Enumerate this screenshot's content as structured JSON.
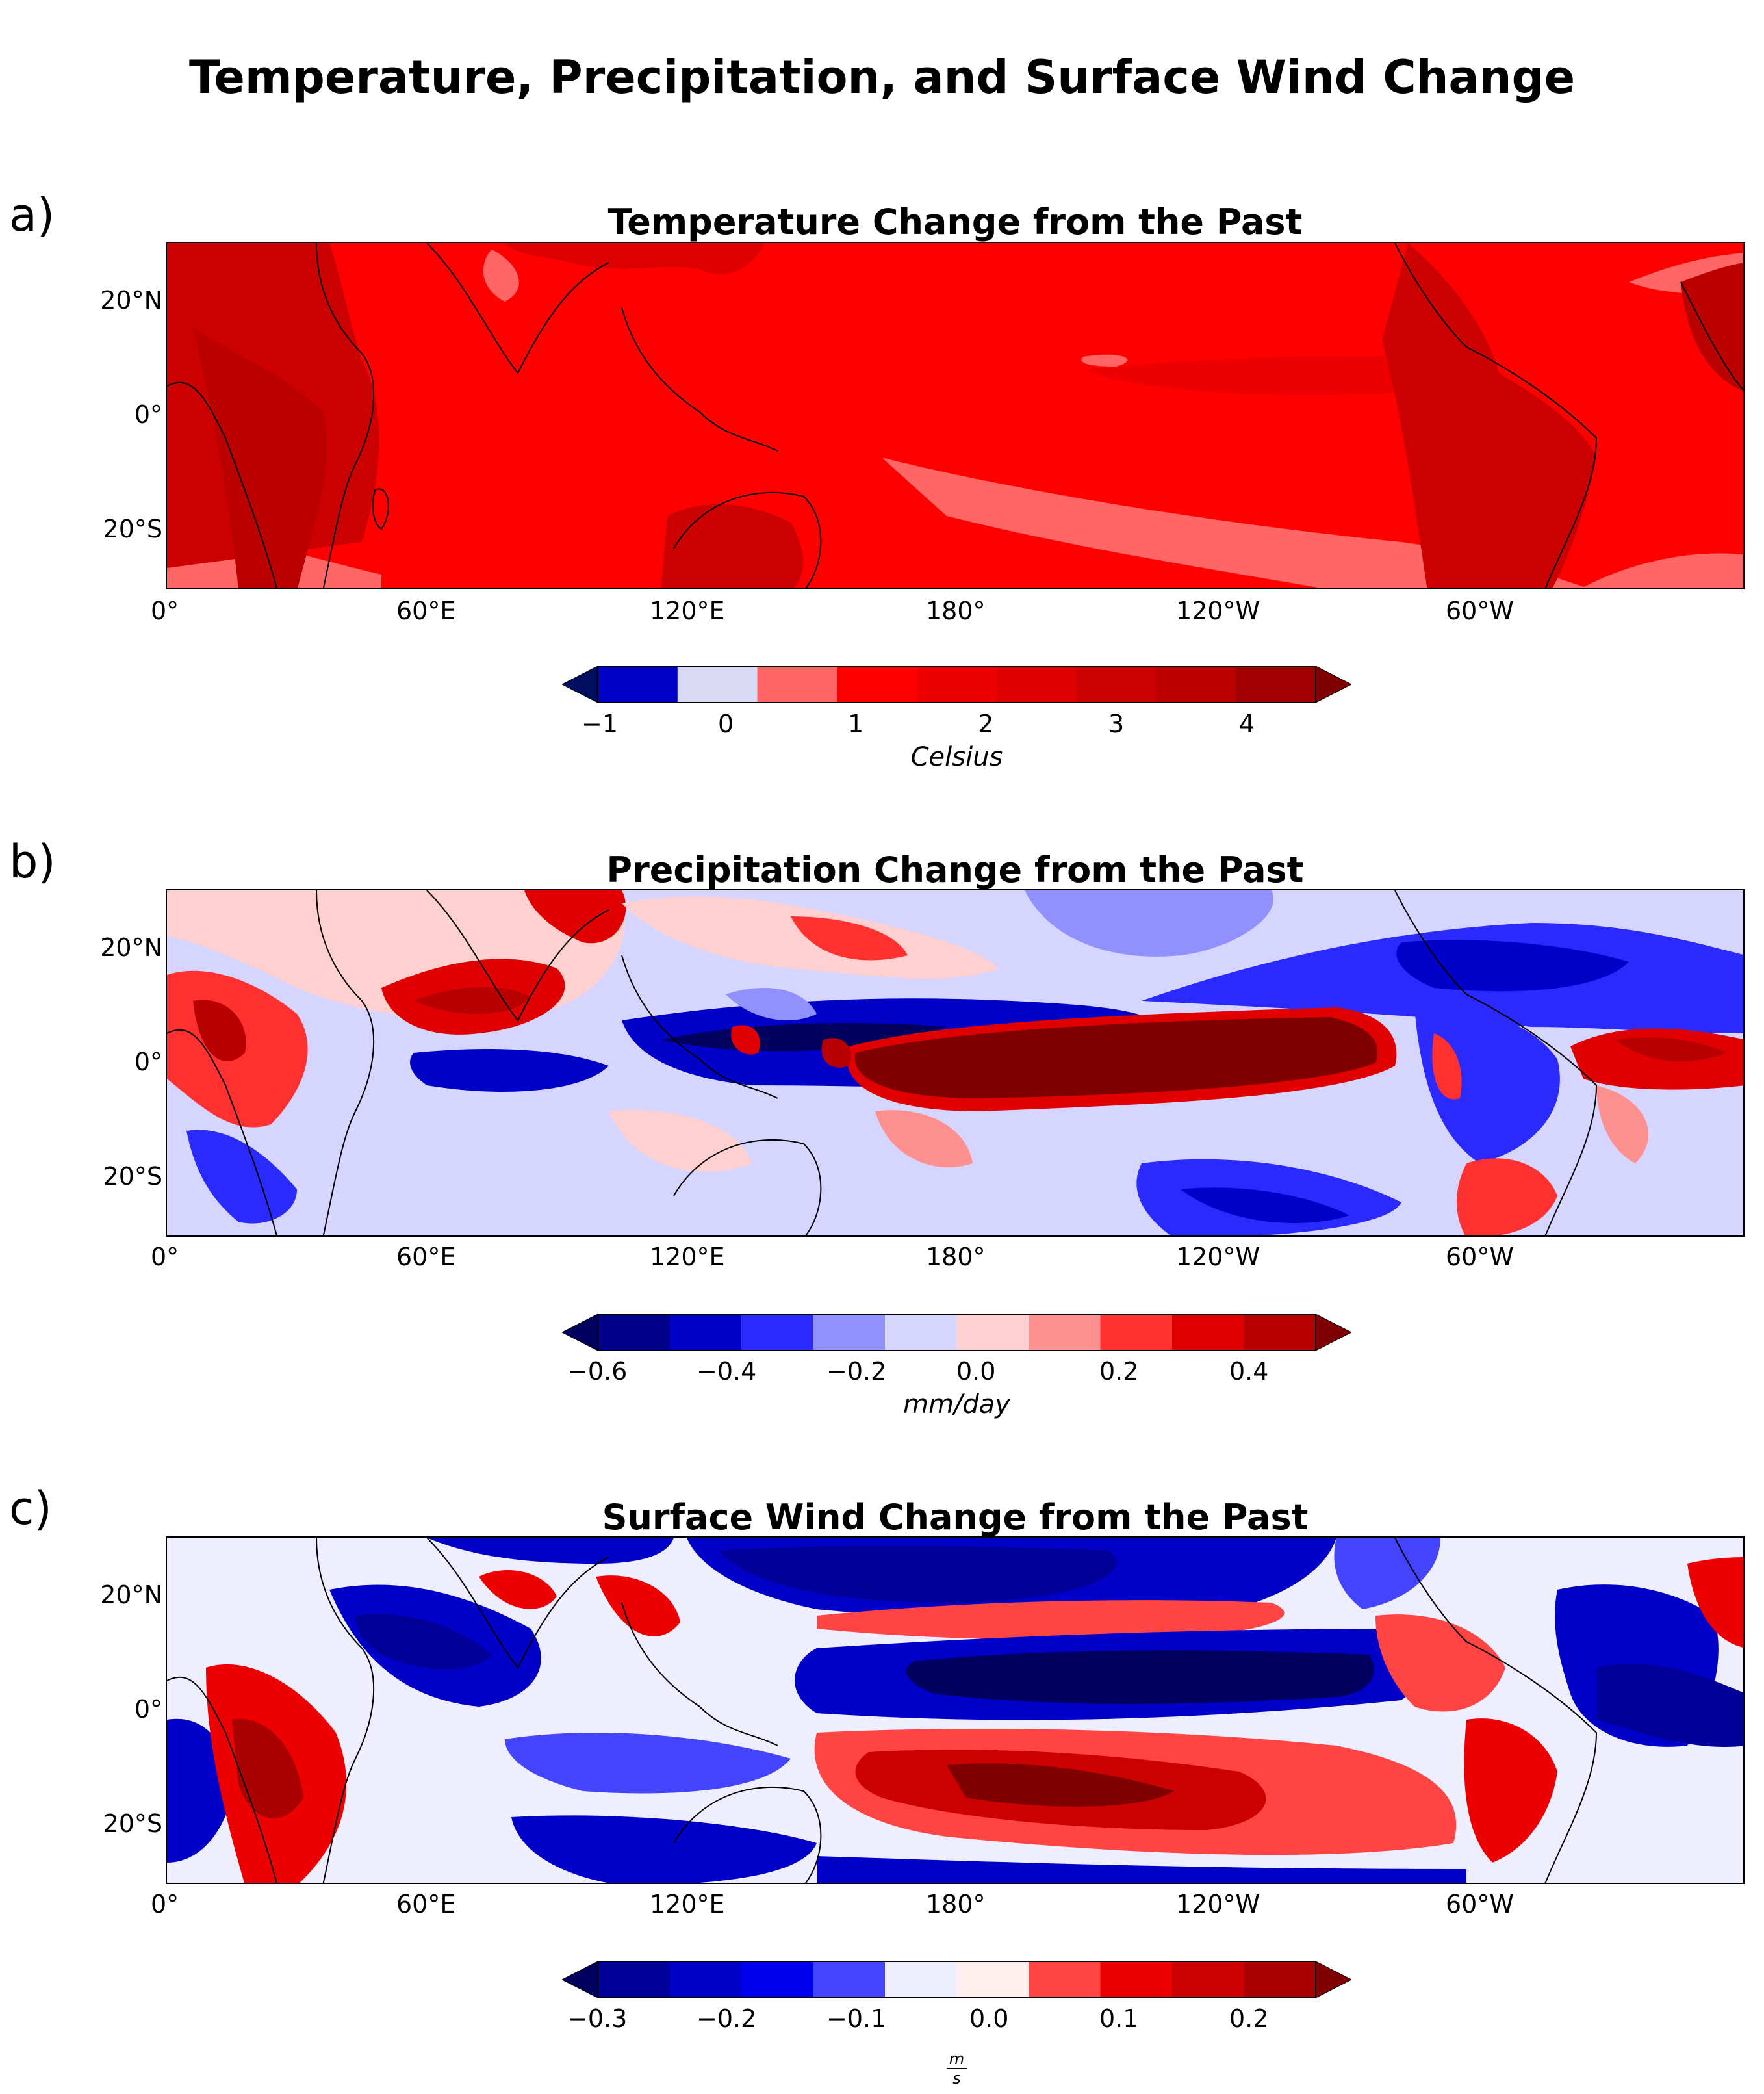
{
  "figure_title": "Temperature, Precipitation, and Surface Wind Change",
  "colors": {
    "temperature": [
      "#000e5f",
      "#0000c8",
      "#d9d9f5",
      "#ff6666",
      "#ff0000",
      "#ee0000",
      "#dd0000",
      "#cc0000",
      "#bb0000",
      "#a00000",
      "#800000"
    ],
    "precipitation": [
      "#00005e",
      "#00008c",
      "#0000c8",
      "#2a2aff",
      "#9090ff",
      "#d5d5ff",
      "#ffd0d0",
      "#ff9090",
      "#ff3030",
      "#e00000",
      "#b80000",
      "#800000"
    ],
    "wind": [
      "#00005e",
      "#000098",
      "#0000c8",
      "#0000ee",
      "#4444ff",
      "#eeeeff",
      "#ffeeee",
      "#ff4444",
      "#ee0000",
      "#cc0000",
      "#aa0000",
      "#800000"
    ]
  },
  "chart_data": [
    {
      "type": "heatmap",
      "panel_label": "a)",
      "title": "Temperature Change from the Past",
      "x_ticks": [
        "0°",
        "60°E",
        "120°E",
        "180°",
        "120°W",
        "60°W"
      ],
      "y_ticks": [
        "20°N",
        "0°",
        "20°S"
      ],
      "colorbar": {
        "ticks": [
          "−1",
          "0",
          "1",
          "2",
          "3",
          "4"
        ],
        "label": "Celsius",
        "range": [
          -1,
          4.5
        ],
        "extend": "both"
      }
    },
    {
      "type": "heatmap",
      "panel_label": "b)",
      "title": "Precipitation Change from the Past",
      "x_ticks": [
        "0°",
        "60°E",
        "120°E",
        "180°",
        "120°W",
        "60°W"
      ],
      "y_ticks": [
        "20°N",
        "0°",
        "20°S"
      ],
      "colorbar": {
        "ticks": [
          "−0.6",
          "−0.4",
          "−0.2",
          "0.0",
          "0.2",
          "0.4"
        ],
        "label": "mm/day",
        "range": [
          -0.6,
          0.5
        ],
        "extend": "both"
      }
    },
    {
      "type": "heatmap",
      "panel_label": "c)",
      "title": "Surface Wind Change from the Past",
      "x_ticks": [
        "0°",
        "60°E",
        "120°E",
        "180°",
        "120°W",
        "60°W"
      ],
      "y_ticks": [
        "20°N",
        "0°",
        "20°S"
      ],
      "colorbar": {
        "ticks": [
          "−0.3",
          "−0.2",
          "−0.1",
          "0.0",
          "0.1",
          "0.2"
        ],
        "label_num": "m",
        "label_den": "s",
        "range": [
          -0.3,
          0.25
        ],
        "extend": "both"
      }
    }
  ]
}
